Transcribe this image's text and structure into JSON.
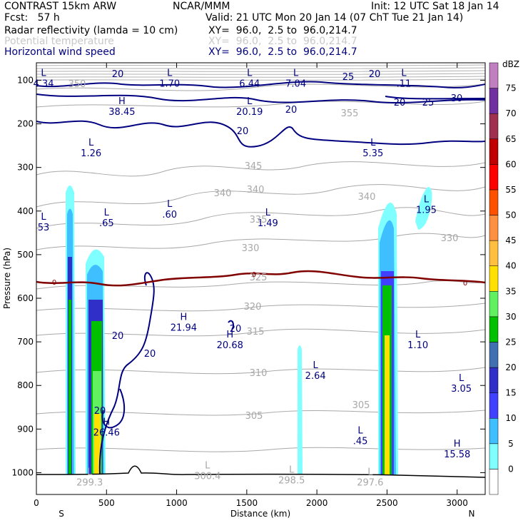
{
  "header": {
    "model": "CONTRAST 15km ARW",
    "center": "NCAR/MMM",
    "init": "Init: 12 UTC Sat 18 Jan 14",
    "fcst": "Fcst:   57 h",
    "valid": "Valid: 21 UTC Mon 20 Jan 14 (07 ChT Tue 21 Jan 14)",
    "fields": [
      {
        "name": "Radar reflectivity (lamda = 10 cm)",
        "xy": "XY=  96.0,  2.5 to  96.0,214.7"
      },
      {
        "name": "Potential temperature",
        "xy": "XY=  96.0,  2.5 to  96.0,214.7"
      },
      {
        "name": "Horizontal wind speed",
        "xy": "XY=  96.0,  2.5 to  96.0,214.7"
      }
    ]
  },
  "chart_data": {
    "type": "cross-section",
    "xlabel": "Distance (km)",
    "ylabel": "Pressure (hPa)",
    "xlim": [
      0,
      3200
    ],
    "ylim": [
      1050,
      60
    ],
    "x_ticks": [
      0,
      500,
      1000,
      1500,
      2000,
      2500,
      3000
    ],
    "y_ticks": [
      100,
      200,
      300,
      400,
      500,
      600,
      700,
      800,
      900,
      1000
    ],
    "x_end_labels": [
      "S",
      "N"
    ],
    "colorbar": {
      "title": "dBZ",
      "levels": [
        "0",
        "5",
        "10",
        "15",
        "20",
        "25",
        "30",
        "35",
        "40",
        "45",
        "50",
        "55",
        "60",
        "65",
        "70",
        "75"
      ],
      "colors": [
        "#ffffff",
        "#7fffff",
        "#3fbfff",
        "#4040ff",
        "#3030c8",
        "#4070b0",
        "#00c000",
        "#60f060",
        "#ffe000",
        "#ffc040",
        "#ff9040",
        "#ff5000",
        "#ff0000",
        "#c00000",
        "#a03050",
        "#7030a0",
        "#c080c0"
      ]
    },
    "zero_line_label": "0",
    "wind_speed_labels": [
      "20",
      "20",
      "20",
      "25",
      "20",
      "30",
      "25",
      "20",
      "20",
      "20",
      "20",
      "20"
    ],
    "theta_labels": [
      "350",
      "355",
      "345",
      "340",
      "340",
      "340",
      "335",
      "330",
      "330",
      "325",
      "320",
      "315",
      "310",
      "305",
      "305"
    ],
    "extrema": [
      {
        "type": "L",
        "value": "4.34",
        "x": 25,
        "p": 100
      },
      {
        "type": "L",
        "value": "1.70",
        "x": 950,
        "p": 100
      },
      {
        "type": "L",
        "value": "6.44",
        "x": 1520,
        "p": 100
      },
      {
        "type": "L",
        "value": "7.04",
        "x": 1850,
        "p": 100
      },
      {
        "type": "L",
        "value": ".11",
        "x": 2620,
        "p": 100
      },
      {
        "type": "H",
        "value": "38.45",
        "x": 610,
        "p": 165
      },
      {
        "type": "L",
        "value": "20.19",
        "x": 1520,
        "p": 165
      },
      {
        "type": "L",
        "value": "1.26",
        "x": 390,
        "p": 260
      },
      {
        "type": "L",
        "value": "5.35",
        "x": 2400,
        "p": 260
      },
      {
        "type": "L",
        "value": "1.95",
        "x": 2780,
        "p": 390
      },
      {
        "type": "L",
        "value": ".60",
        "x": 950,
        "p": 400
      },
      {
        "type": "L",
        "value": ".65",
        "x": 500,
        "p": 420
      },
      {
        "type": "L",
        "value": "1.49",
        "x": 1650,
        "p": 420
      },
      {
        "type": "L",
        "value": "53",
        "x": 0,
        "p": 430
      },
      {
        "type": "H",
        "value": "21.94",
        "x": 1050,
        "p": 660
      },
      {
        "type": "H",
        "value": "20.68",
        "x": 1380,
        "p": 700
      },
      {
        "type": "L",
        "value": "1.10",
        "x": 2720,
        "p": 700
      },
      {
        "type": "L",
        "value": "2.64",
        "x": 1990,
        "p": 770
      },
      {
        "type": "L",
        "value": "3.05",
        "x": 3030,
        "p": 800
      },
      {
        "type": "H",
        "value": "26.46",
        "x": 500,
        "p": 900
      },
      {
        "type": "L",
        "value": ".45",
        "x": 2310,
        "p": 920
      },
      {
        "type": "H",
        "value": "15.58",
        "x": 3000,
        "p": 950
      },
      {
        "type": "L",
        "value": "300.4",
        "x": 1220,
        "p": 1000
      },
      {
        "type": "L",
        "value": "298.5",
        "x": 1820,
        "p": 1010
      },
      {
        "type": "L",
        "value": "299.3",
        "x": 380,
        "p": 1015
      },
      {
        "type": "L",
        "value": "297.6",
        "x": 2380,
        "p": 1015
      }
    ]
  }
}
